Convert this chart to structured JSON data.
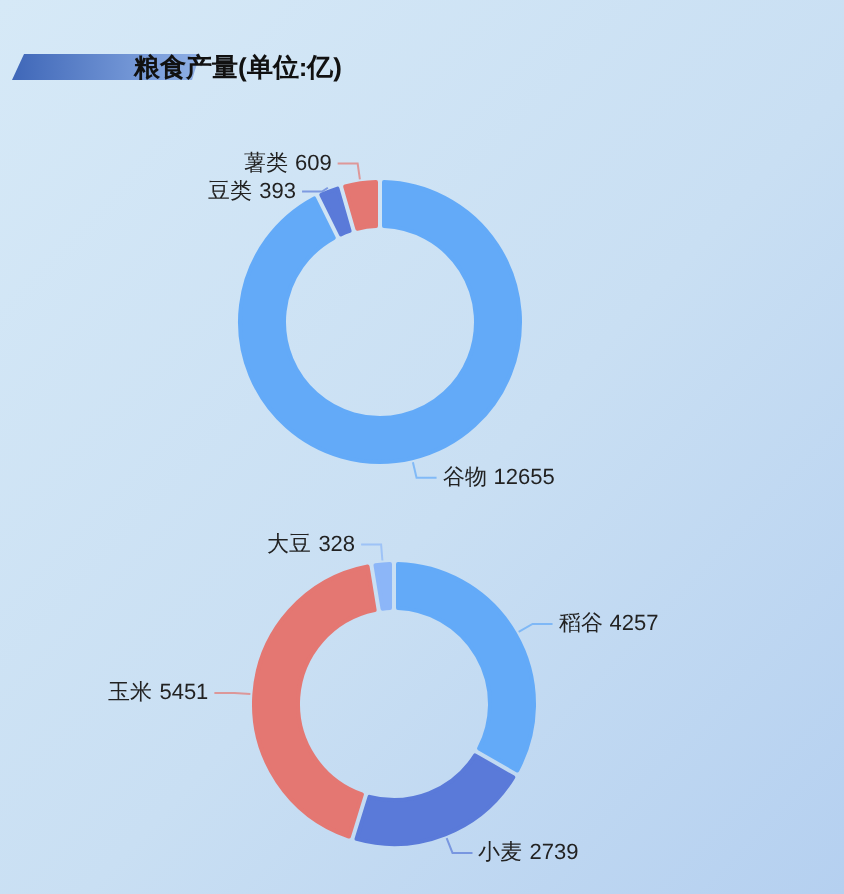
{
  "chart_data": [
    {
      "type": "donut",
      "title": "粮食产量(单位:亿)",
      "categories": [
        "谷物",
        "豆类",
        "薯类"
      ],
      "values": [
        12655,
        393,
        609
      ],
      "colors": [
        "#63aaf8",
        "#5a7ad9",
        "#e47772"
      ],
      "data_labels": true
    },
    {
      "type": "donut",
      "categories": [
        "稻谷",
        "小麦",
        "玉米",
        "大豆"
      ],
      "values": [
        4257,
        2739,
        5451,
        328
      ],
      "colors": [
        "#63aaf8",
        "#5a7ad9",
        "#e47772",
        "#8cb6f8"
      ],
      "data_labels": true
    }
  ]
}
